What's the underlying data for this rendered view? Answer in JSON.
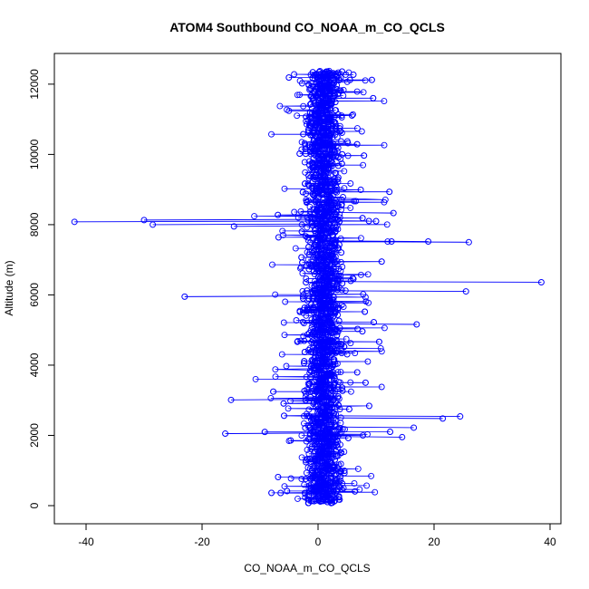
{
  "chart_data": {
    "type": "scatter",
    "style": "points-and-lines",
    "title": "ATOM4 Southbound CO_NOAA_m_CO_QCLS",
    "xlabel": "CO_NOAA_m_CO_QCLS",
    "ylabel": "Altitude (m)",
    "xlim": [
      -45,
      40
    ],
    "ylim": [
      0,
      12800
    ],
    "xticks": [
      -40,
      -20,
      0,
      20,
      40
    ],
    "yticks": [
      0,
      2000,
      4000,
      6000,
      8000,
      10000,
      12000
    ],
    "xtick_labels": [
      "-40",
      "-20",
      "0",
      "20",
      "40"
    ],
    "ytick_labels": [
      "0",
      "2000",
      "4000",
      "6000",
      "8000",
      "10000",
      "12000"
    ],
    "grid": false,
    "legend": "none",
    "color": "#0000ff",
    "series_summary": {
      "n_points_approx": 15000,
      "bulk_x_range": [
        -7,
        12
      ],
      "bulk_center_x": 1,
      "y_range": [
        60,
        12380
      ]
    },
    "outliers": [
      {
        "x": -42,
        "y": 8080
      },
      {
        "x": -30,
        "y": 8130
      },
      {
        "x": -28.5,
        "y": 8000
      },
      {
        "x": -14.5,
        "y": 7950
      },
      {
        "x": -23,
        "y": 5950
      },
      {
        "x": -16,
        "y": 2050
      },
      {
        "x": -15,
        "y": 3010
      },
      {
        "x": 38.5,
        "y": 6360
      },
      {
        "x": 25.5,
        "y": 6100
      },
      {
        "x": 26,
        "y": 7500
      },
      {
        "x": 19,
        "y": 7520
      },
      {
        "x": 24.5,
        "y": 2540
      },
      {
        "x": 21.5,
        "y": 2480
      },
      {
        "x": 17,
        "y": 5160
      },
      {
        "x": 16.5,
        "y": 2220
      },
      {
        "x": 14.5,
        "y": 1950
      },
      {
        "x": 13,
        "y": 8330
      }
    ]
  }
}
